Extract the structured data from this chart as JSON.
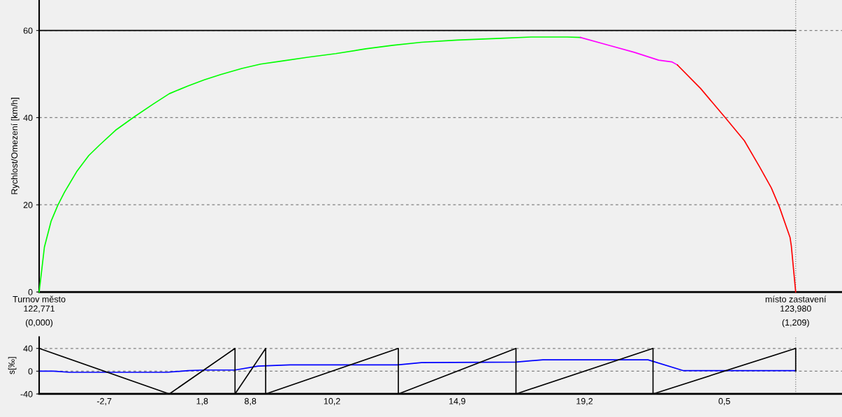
{
  "chart_data": [
    {
      "type": "line",
      "ylabel": "Rychlost/Omezení [km/h]",
      "xlim": [
        0,
        1.283
      ],
      "xticks": [
        {
          "value": 0,
          "label": "(0,000)"
        },
        {
          "value": 1.209,
          "label": "(1,209)"
        }
      ],
      "annotations": [
        {
          "text": "Turnov město\n122,771",
          "x": 0,
          "y": 0
        },
        {
          "text": "místo zastavení\n123,980",
          "x": 1.209,
          "y": 0
        }
      ],
      "ylim": [
        0,
        67
      ],
      "yticks": [
        0,
        20,
        40,
        60
      ],
      "grid": "y",
      "legend": false,
      "marker": "none",
      "line_style": "solid",
      "ref_lines": [
        {
          "axis": "x",
          "value": 1.209,
          "color": "#808080",
          "line_style": "dotted"
        }
      ],
      "series": [
        {
          "color": "#000000",
          "x": [
            0,
            1.209
          ],
          "values": [
            60,
            60
          ]
        },
        {
          "color": "#00ff00",
          "x": [
            0,
            0.0084,
            0.019,
            0.0298,
            0.0405,
            0.0599,
            0.0792,
            0.0964,
            0.122,
            0.152,
            0.182,
            0.208,
            0.238,
            0.264,
            0.29,
            0.324,
            0.354,
            0.388,
            0.431,
            0.474,
            0.522,
            0.565,
            0.611,
            0.668,
            0.737,
            0.786,
            0.844,
            0.865
          ],
          "values": [
            0,
            10.3,
            16.2,
            19.9,
            22.9,
            27.6,
            31.3,
            33.7,
            37.1,
            40.2,
            43.1,
            45.5,
            47.3,
            48.7,
            49.9,
            51.3,
            52.3,
            53.0,
            53.9,
            54.7,
            55.8,
            56.6,
            57.3,
            57.8,
            58.2,
            58.5,
            58.5,
            58.4
          ]
        },
        {
          "color": "#ff00ff",
          "x": [
            0.865,
            0.908,
            0.951,
            0.99,
            1.011,
            1.02
          ],
          "values": [
            58.4,
            56.7,
            55.0,
            53.2,
            52.8,
            52.1
          ]
        },
        {
          "color": "#ff0000",
          "x": [
            1.02,
            1.057,
            1.097,
            1.127,
            1.151,
            1.17,
            1.183,
            1.2,
            1.202,
            1.209
          ],
          "values": [
            52.1,
            46.7,
            39.9,
            34.7,
            28.8,
            23.9,
            19.5,
            12.5,
            10.6,
            0
          ]
        }
      ]
    },
    {
      "type": "line",
      "ylabel": "s[‰]",
      "xlim": [
        0,
        1.283
      ],
      "ylim": [
        -40,
        60
      ],
      "yticks": [
        -40,
        0,
        40
      ],
      "grid": "y",
      "legend": false,
      "marker": "none",
      "line_style": "solid",
      "tick_labels": "y",
      "ref_lines": [
        {
          "axis": "x",
          "value": 1.209,
          "color": "#808080",
          "line_style": "dotted"
        }
      ],
      "annotations": [
        "-2,7",
        "1,8",
        "8,8",
        "10,2",
        "14,9",
        "19,2",
        "0,5"
      ],
      "series": [
        {
          "color": "#0000ff",
          "x": [
            0,
            0.023,
            0.049,
            0.204,
            0.238,
            0.264,
            0.313,
            0.35,
            0.401,
            0.573,
            0.611,
            0.762,
            0.805,
            0.973,
            1.029,
            1.209
          ],
          "values": [
            0,
            0,
            -2,
            -2,
            1,
            2,
            2,
            9,
            11,
            11,
            15,
            16,
            20,
            20,
            1,
            1
          ]
        },
        {
          "color": "#000000",
          "x": [
            0,
            0,
            0.208,
            0.313,
            0.313,
            0.362,
            0.362,
            0.574,
            0.574,
            0.762,
            0.762,
            0.981,
            0.981,
            1.209,
            1.209
          ],
          "values": [
            -40,
            40,
            -40,
            40,
            -40,
            40,
            -40,
            40,
            -40,
            40,
            -40,
            40,
            -40,
            40,
            0
          ]
        }
      ]
    }
  ]
}
